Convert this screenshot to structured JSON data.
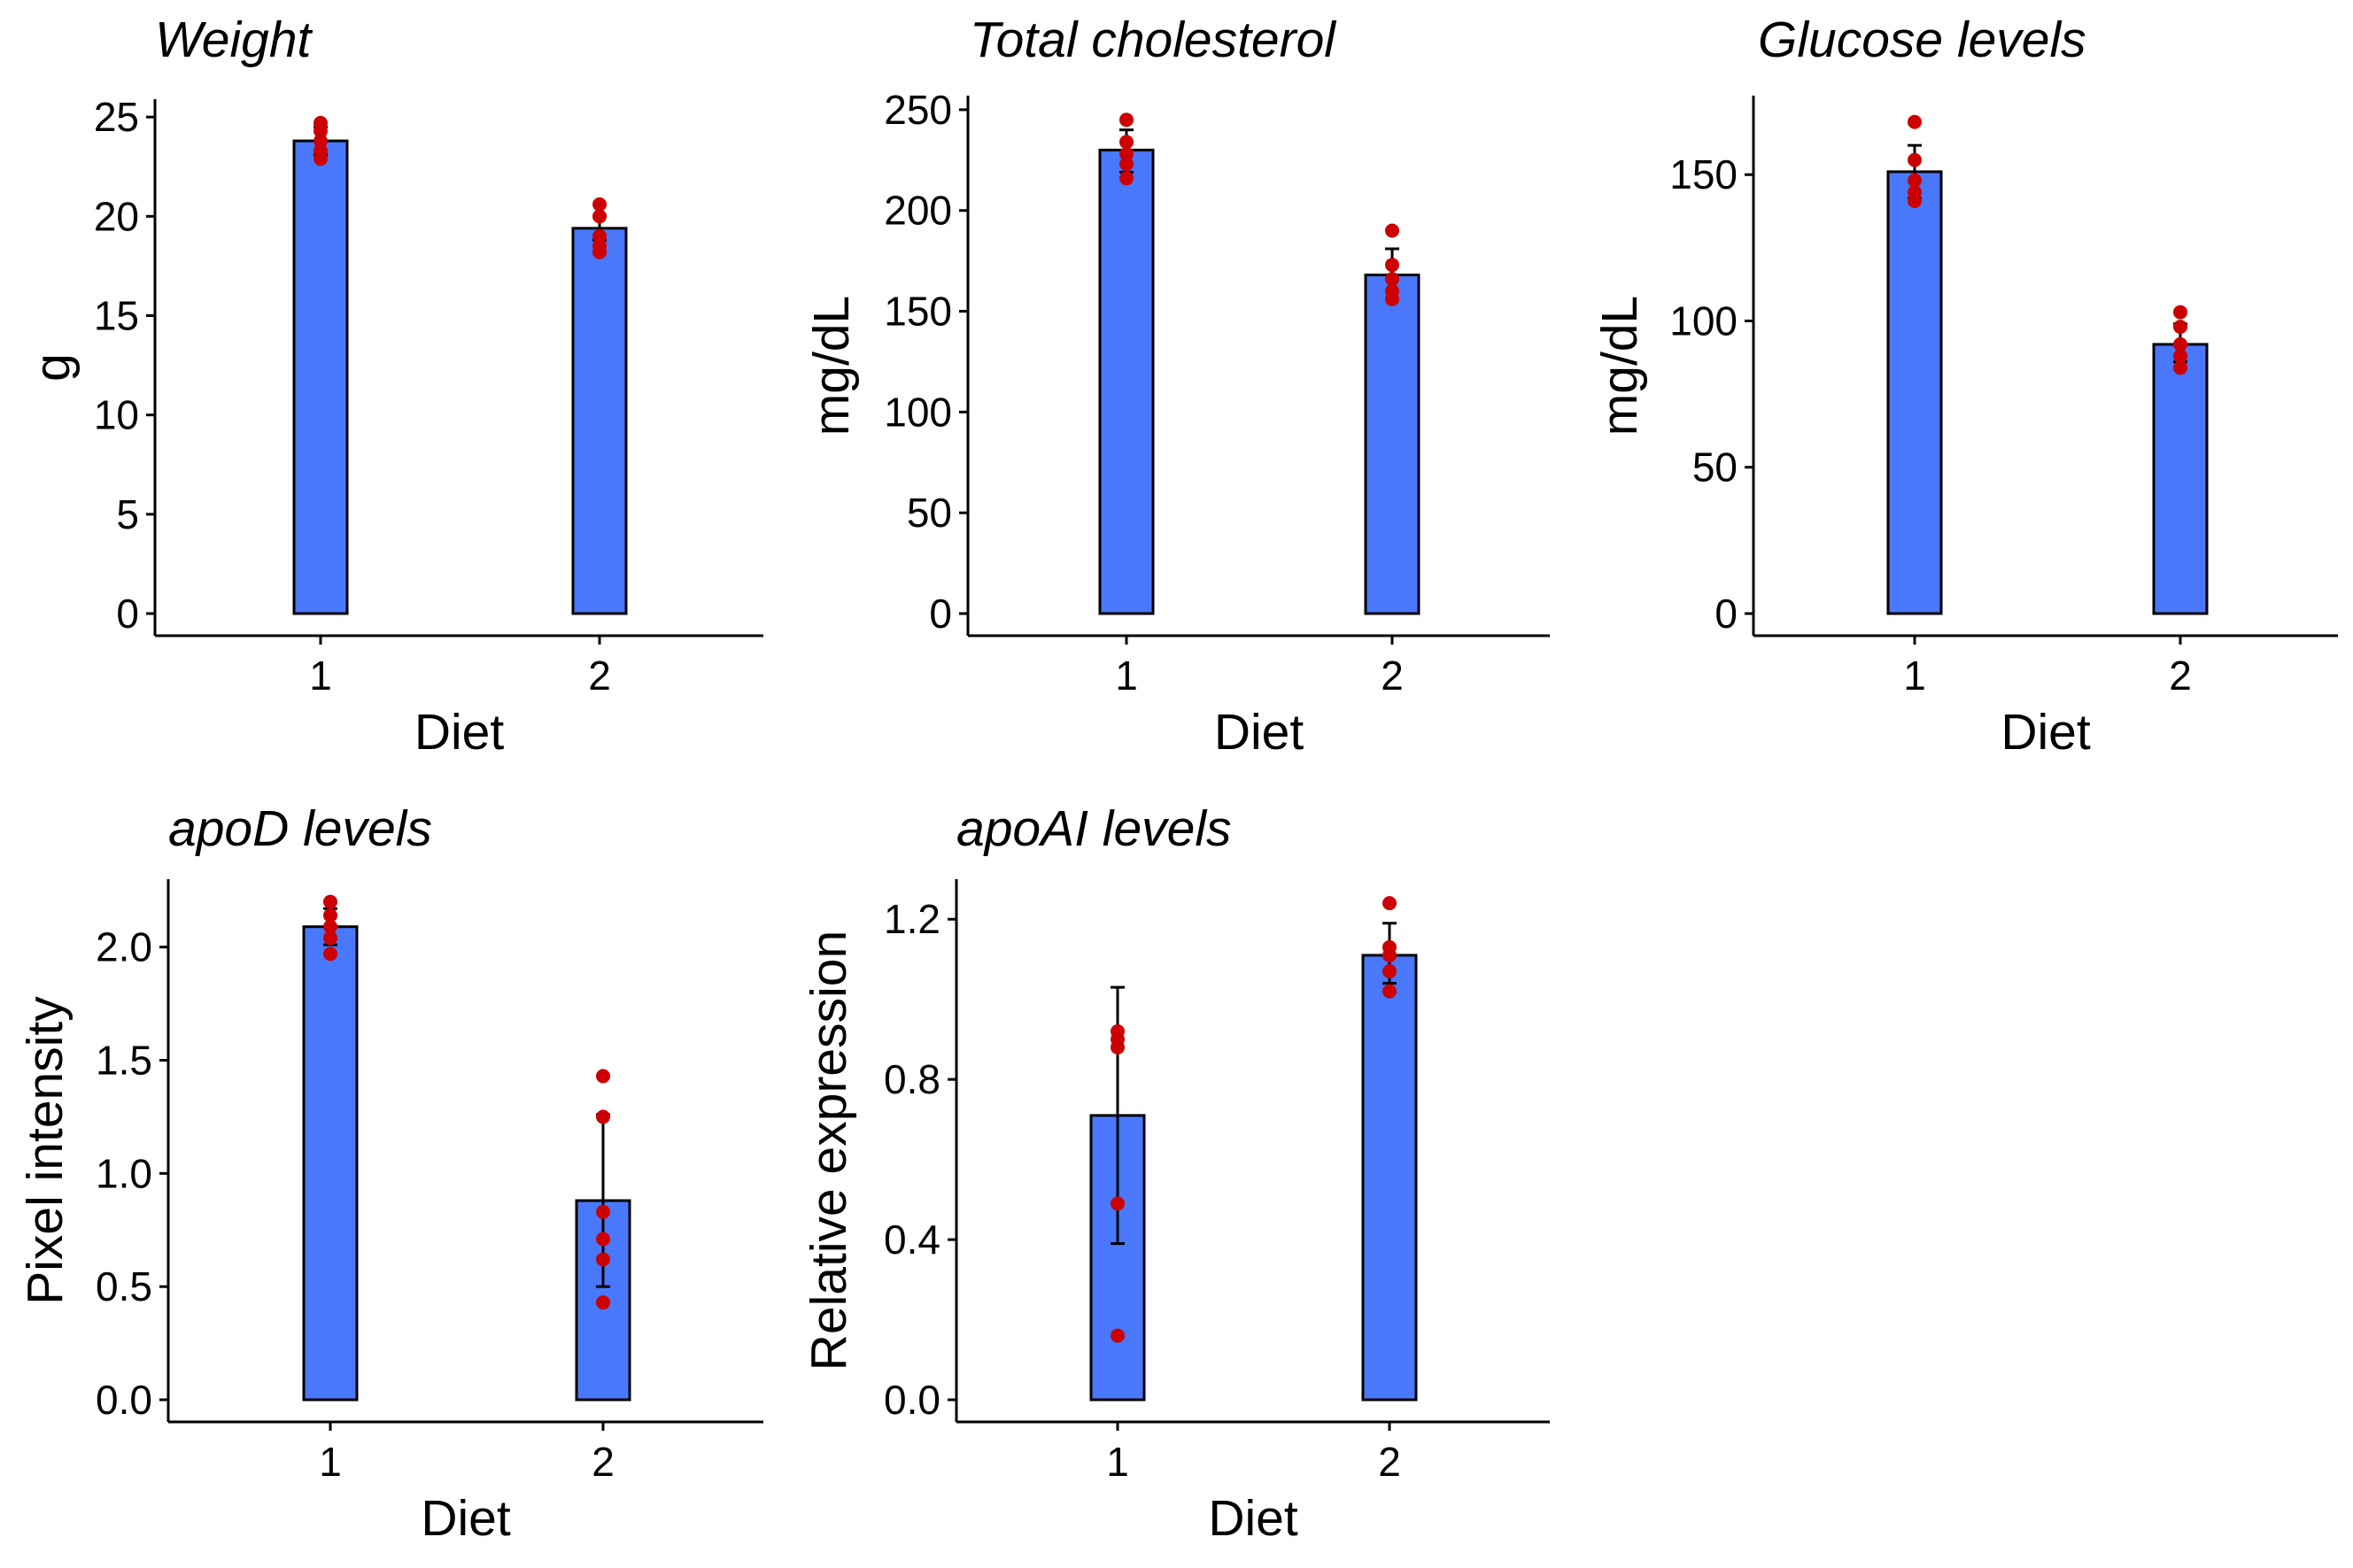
{
  "colors": {
    "bar_fill": "#4a78fb",
    "bar_stroke": "#000000",
    "point": "#cc0000",
    "axis": "#000000"
  },
  "chart_data": [
    {
      "type": "bar",
      "title": "Weight",
      "xlabel": "Diet",
      "ylabel": "g",
      "categories": [
        "1",
        "2"
      ],
      "values": [
        23.8,
        19.4
      ],
      "error": [
        [
          23.1,
          24.5
        ],
        [
          18.8,
          20.0
        ]
      ],
      "points": [
        [
          24.7,
          24.3,
          23.8,
          23.3,
          22.9
        ],
        [
          20.6,
          20.0,
          19.0,
          18.5,
          18.2
        ]
      ],
      "yticks": [
        "0",
        "5",
        "10",
        "15",
        "20",
        "25"
      ],
      "ylim": [
        0,
        25.9
      ],
      "grid": false,
      "legend": "none"
    },
    {
      "type": "bar",
      "title": "Total cholesterol",
      "xlabel": "Diet",
      "ylabel": "mg/dL",
      "categories": [
        "1",
        "2"
      ],
      "values": [
        230,
        168
      ],
      "error": [
        [
          219,
          240
        ],
        [
          156,
          181
        ]
      ],
      "points": [
        [
          245,
          234,
          228,
          223,
          216
        ],
        [
          190,
          173,
          166,
          160,
          156
        ]
      ],
      "yticks": [
        "0",
        "50",
        "100",
        "150",
        "200",
        "250"
      ],
      "ylim": [
        0,
        257
      ],
      "grid": false,
      "legend": "none"
    },
    {
      "type": "bar",
      "title": "Glucose levels",
      "xlabel": "Diet",
      "ylabel": "mg/dL",
      "categories": [
        "1",
        "2"
      ],
      "values": [
        151,
        92
      ],
      "error": [
        [
          142,
          160
        ],
        [
          86,
          99
        ]
      ],
      "points": [
        [
          168,
          155,
          148,
          144,
          141
        ],
        [
          103,
          98,
          92,
          88,
          84
        ]
      ],
      "yticks": [
        "0",
        "50",
        "100",
        "150"
      ],
      "ylim": [
        0,
        177
      ],
      "grid": false,
      "legend": "none"
    },
    {
      "type": "bar",
      "title": "apoD levels",
      "xlabel": "Diet",
      "ylabel": "Pixel intensity",
      "categories": [
        "1",
        "2"
      ],
      "values": [
        2.09,
        0.88
      ],
      "error": [
        [
          2.01,
          2.17
        ],
        [
          0.5,
          1.26
        ]
      ],
      "points": [
        [
          2.2,
          2.14,
          2.09,
          2.04,
          1.97
        ],
        [
          1.43,
          1.25,
          0.83,
          0.71,
          0.62,
          0.43
        ]
      ],
      "yticks": [
        "0.0",
        "0.5",
        "1.0",
        "1.5",
        "2.0"
      ],
      "ylim": [
        0,
        2.3
      ],
      "grid": false,
      "legend": "none"
    },
    {
      "type": "bar",
      "title": "apoAI levels",
      "xlabel": "Diet",
      "ylabel": "Relative expression",
      "categories": [
        "1",
        "2"
      ],
      "values": [
        0.71,
        1.11
      ],
      "error": [
        [
          0.39,
          1.03
        ],
        [
          1.04,
          1.19
        ]
      ],
      "points": [
        [
          0.92,
          0.9,
          0.88,
          0.49,
          0.16
        ],
        [
          1.24,
          1.13,
          1.11,
          1.07,
          1.02
        ]
      ],
      "yticks": [
        "0.0",
        "0.4",
        "0.8",
        "1.2"
      ],
      "ylim": [
        0,
        1.3
      ],
      "grid": false,
      "legend": "none"
    }
  ]
}
